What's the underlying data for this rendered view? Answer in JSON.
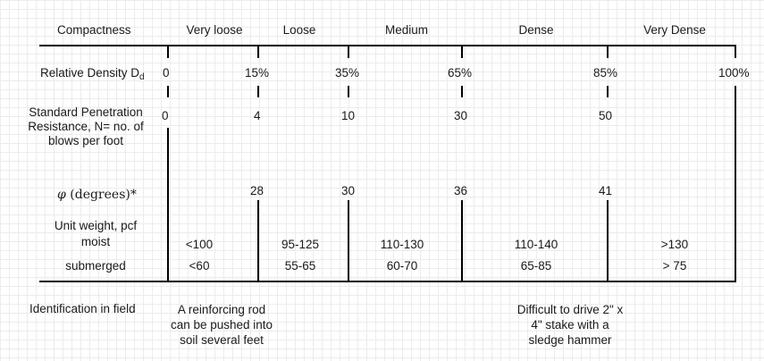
{
  "header": {
    "compactness_label": "Compactness",
    "categories": [
      "Very loose",
      "Loose",
      "Medium",
      "Dense",
      "Very Dense"
    ]
  },
  "relative_density": {
    "label": "Relative Density D",
    "subscript": "d",
    "values": [
      "0",
      "15%",
      "35%",
      "65%",
      "85%",
      "100%"
    ]
  },
  "spt": {
    "label_lines": [
      "Standard Penetration",
      "Resistance, N= no. of",
      "blows per foot"
    ],
    "values": [
      "0",
      "4",
      "10",
      "30",
      "50"
    ]
  },
  "phi": {
    "symbol": "φ",
    "label": "(degrees)*",
    "values": [
      "28",
      "30",
      "36",
      "41"
    ]
  },
  "unit_weight": {
    "label_lines": [
      "Unit weight, pcf",
      "moist"
    ],
    "moist_values": [
      "<100",
      "95-125",
      "110-130",
      "110-140",
      ">130"
    ],
    "submerged_label": "submerged",
    "submerged_values": [
      "<60",
      "55-65",
      "60-70",
      "65-85",
      "> 75"
    ]
  },
  "identification": {
    "label": "Identification in field",
    "loose_lines": [
      "A reinforcing rod",
      "can be pushed into",
      "soil several feet"
    ],
    "dense_lines": [
      "Difficult to drive 2\" x",
      "4\" stake with a",
      "sledge hammer"
    ]
  }
}
